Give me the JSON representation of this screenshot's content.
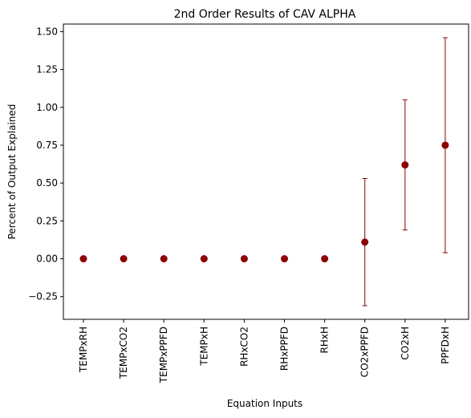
{
  "chart_data": {
    "type": "scatter",
    "title": "2nd Order Results of CAV ALPHA",
    "xlabel": "Equation Inputs",
    "ylabel": "Percent of Output Explained",
    "categories": [
      "TEMPxRH",
      "TEMPxCO2",
      "TEMPxPPFD",
      "TEMPxH",
      "RHxCO2",
      "RHxPPFD",
      "RHxH",
      "CO2xPPFD",
      "CO2xH",
      "PPFDxH"
    ],
    "series": [
      {
        "values": [
          0.0,
          0.0,
          0.0,
          0.0,
          0.0,
          0.0,
          0.0,
          0.11,
          0.62,
          0.75
        ],
        "err_low": [
          0.0,
          0.0,
          0.0,
          0.0,
          0.0,
          0.0,
          0.0,
          -0.31,
          0.19,
          0.04
        ],
        "err_high": [
          0.0,
          0.0,
          0.0,
          0.0,
          0.0,
          0.0,
          0.0,
          0.53,
          1.05,
          1.46
        ],
        "color": "#8b0000"
      }
    ],
    "ylim": [
      -0.4,
      1.55
    ],
    "yticks": [
      -0.25,
      0.0,
      0.25,
      0.5,
      0.75,
      1.0,
      1.25,
      1.5
    ],
    "ytick_labels": [
      "−0.25",
      "0.00",
      "0.25",
      "0.50",
      "0.75",
      "1.00",
      "1.25",
      "1.50"
    ],
    "grid": false,
    "legend": false
  }
}
